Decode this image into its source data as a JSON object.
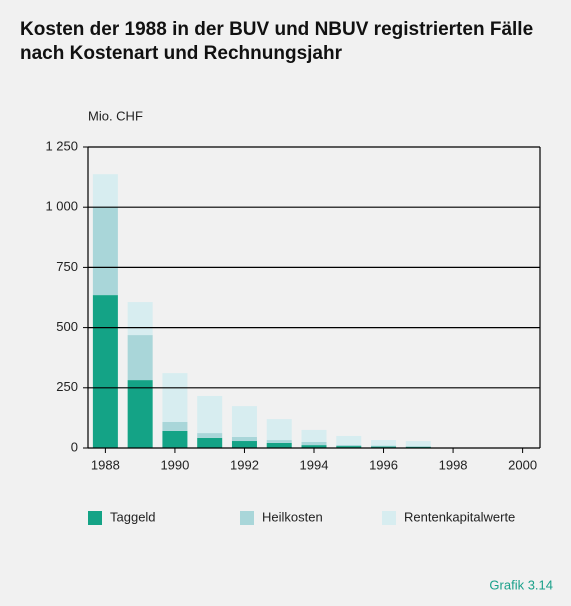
{
  "chart_data": {
    "type": "stacked_bar",
    "title": "Kosten der 1988 in der BUV und NBUV registrierten Fälle nach Kostenart und Rechnungsjahr",
    "y_label": "Mio. CHF",
    "x": [
      1988,
      1989,
      1990,
      1991,
      1992,
      1993,
      1994,
      1995,
      1996,
      1997
    ],
    "series": [
      {
        "name": "Taggeld",
        "color": "#14a386",
        "values": [
          635,
          282,
          71,
          42,
          29,
          21,
          12,
          8,
          6,
          5
        ]
      },
      {
        "name": "Heilkosten",
        "color": "#a9d6d9",
        "values": [
          365,
          187,
          37,
          20,
          17,
          12,
          13,
          5,
          4,
          3
        ]
      },
      {
        "name": "Rentenkapitalwerte",
        "color": "#d7edf0",
        "values": [
          137,
          137,
          203,
          154,
          128,
          87,
          50,
          37,
          23,
          21
        ]
      }
    ],
    "xlim": [
      1987.5,
      2000.5
    ],
    "xticks": [
      1988,
      1990,
      1992,
      1994,
      1996,
      1998,
      2000
    ],
    "ylim": [
      0,
      1250
    ],
    "yticks": [
      0,
      250,
      500,
      750,
      {
        "value": 1000,
        "label": "1 000"
      },
      {
        "value": 1250,
        "label": "1 250"
      }
    ],
    "grid": true,
    "legend": "bottom",
    "footer": "Grafik 3.14"
  }
}
